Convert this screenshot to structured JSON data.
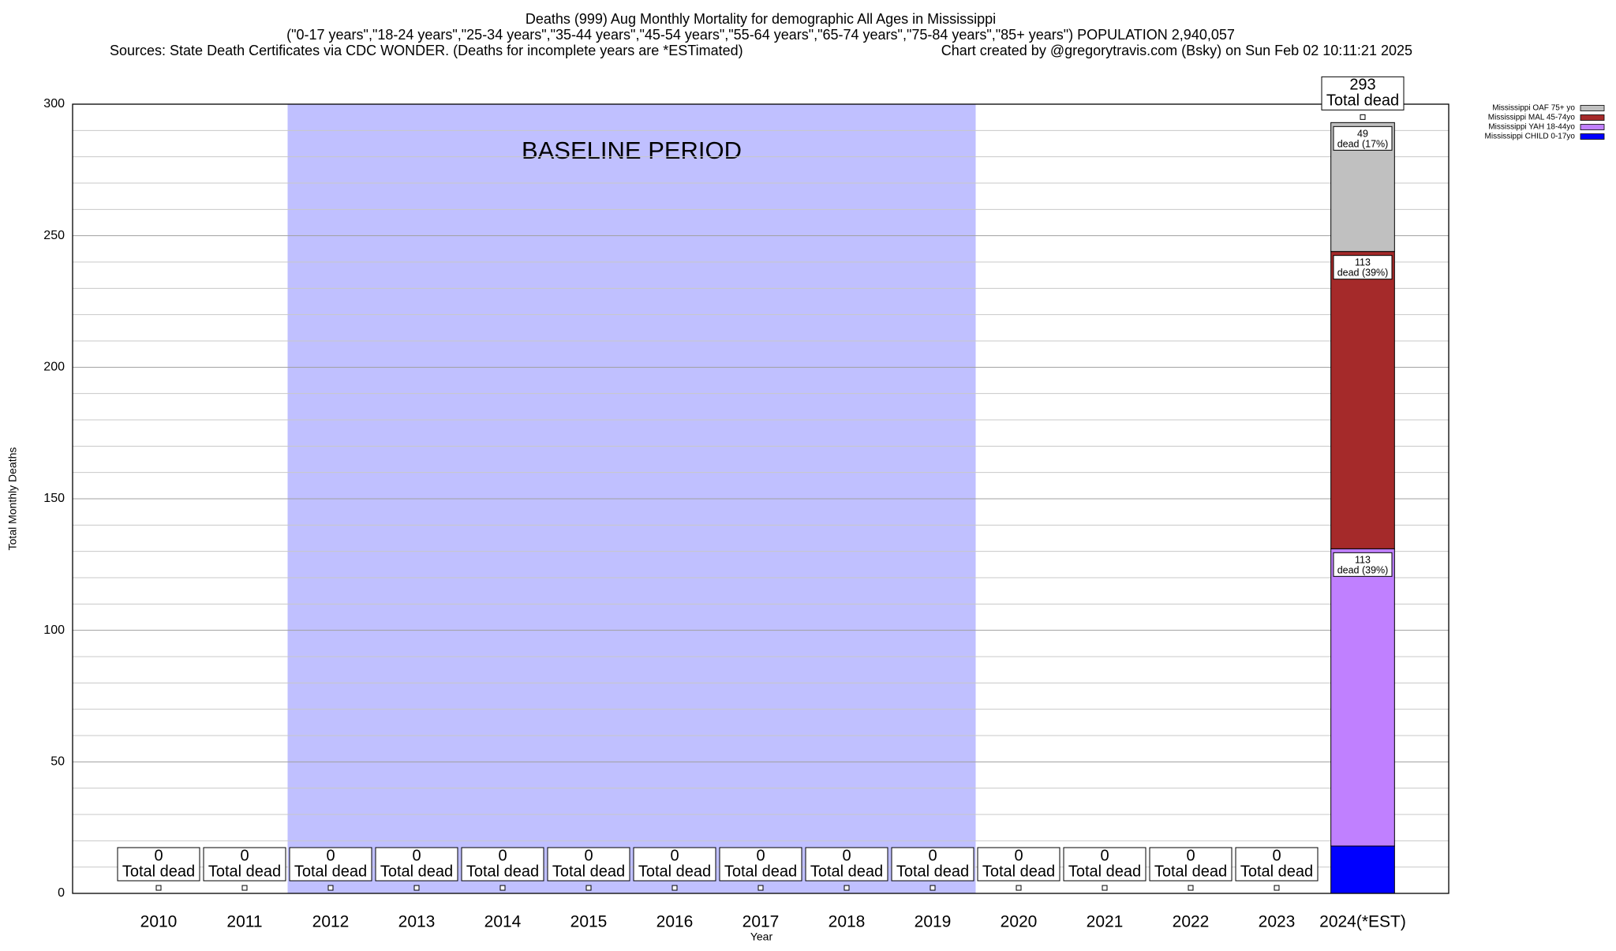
{
  "chart_data": {
    "type": "stacked_bar",
    "title": "Deaths (999) Aug Monthly Mortality for demographic All Ages in Mississippi",
    "subtitle": "(\"0-17 years\",\"18-24 years\",\"25-34 years\",\"35-44 years\",\"45-54 years\",\"55-64 years\",\"65-74 years\",\"75-84 years\",\"85+ years\") POPULATION 2,940,057",
    "source": "Sources: State Death Certificates via CDC WONDER. (Deaths for incomplete years are *ESTimated)",
    "credit": "Chart created by @gregorytravis.com (Bsky) on Sun Feb 02 10:11:21 2025",
    "x_label": "Year",
    "y_label": "Total Monthly Deaths",
    "categories": [
      "2010",
      "2011",
      "2012",
      "2013",
      "2014",
      "2015",
      "2016",
      "2017",
      "2018",
      "2019",
      "2020",
      "2021",
      "2022",
      "2023",
      "2024(*EST)"
    ],
    "series": [
      {
        "name": "Mississippi CHILD 0-17yo",
        "color": "#0000ff",
        "values": [
          0,
          0,
          0,
          0,
          0,
          0,
          0,
          0,
          0,
          0,
          0,
          0,
          0,
          0,
          18
        ]
      },
      {
        "name": "Mississippi YAH 18-44yo",
        "color": "#c080ff",
        "values": [
          0,
          0,
          0,
          0,
          0,
          0,
          0,
          0,
          0,
          0,
          0,
          0,
          0,
          0,
          113
        ],
        "value_labels": [
          null,
          null,
          null,
          null,
          null,
          null,
          null,
          null,
          null,
          null,
          null,
          null,
          null,
          null,
          "113\ndead (39%)"
        ]
      },
      {
        "name": "Mississippi MAL 45-74yo",
        "color": "#a52a2a",
        "values": [
          0,
          0,
          0,
          0,
          0,
          0,
          0,
          0,
          0,
          0,
          0,
          0,
          0,
          0,
          113
        ],
        "value_labels": [
          null,
          null,
          null,
          null,
          null,
          null,
          null,
          null,
          null,
          null,
          null,
          null,
          null,
          null,
          "113\ndead (39%)"
        ]
      },
      {
        "name": "Mississippi OAF 75+ yo",
        "color": "#c0c0c0",
        "values": [
          0,
          0,
          0,
          0,
          0,
          0,
          0,
          0,
          0,
          0,
          0,
          0,
          0,
          0,
          49
        ],
        "value_labels": [
          null,
          null,
          null,
          null,
          null,
          null,
          null,
          null,
          null,
          null,
          null,
          null,
          null,
          null,
          "49\ndead (17%)"
        ]
      }
    ],
    "totals": [
      0,
      0,
      0,
      0,
      0,
      0,
      0,
      0,
      0,
      0,
      0,
      0,
      0,
      0,
      293
    ],
    "total_label": "Total dead",
    "baseline": {
      "label": "BASELINE PERIOD",
      "start": "2012",
      "end": "2019",
      "color": "#c0c0ff"
    },
    "ylim": [
      0,
      300
    ],
    "yticks": [
      0,
      50,
      100,
      150,
      200,
      250,
      300
    ],
    "minor_yticks": [
      10,
      20,
      30,
      40,
      60,
      70,
      80,
      90,
      110,
      120,
      130,
      140,
      160,
      170,
      180,
      190,
      210,
      220,
      230,
      240,
      260,
      270,
      280,
      290
    ],
    "grid": true,
    "legend": "upper right"
  }
}
